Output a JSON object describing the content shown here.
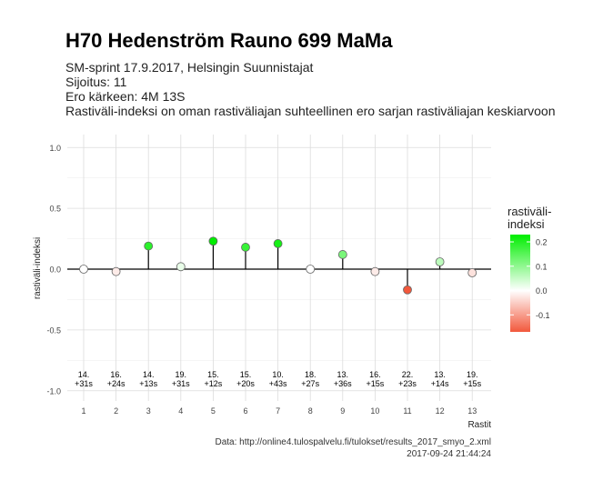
{
  "header": {
    "title": "H70 Hedenström Rauno 699 MaMa",
    "subtitle_lines": [
      "SM-sprint 17.9.2017, Helsingin Suunnistajat",
      "Sijoitus: 11",
      "Ero kärkeen: 4M 13S",
      "Rastiväli-indeksi on oman rastiväliajan suhteellinen ero sarjan rastiväliajan keskiarvoon"
    ]
  },
  "caption": {
    "source": "Data: http://online4.tulospalvelu.fi/tulokset/results_2017_smyo_2.xml",
    "timestamp": "2017-09-24 21:44:24"
  },
  "chart_data": {
    "type": "scatter",
    "style": "lollipop",
    "xlabel": "Rastit",
    "ylabel": "rastiväli-indeksi",
    "ylim": [
      -1.0,
      1.0
    ],
    "yticks": [
      "1.0",
      "0.5",
      "0.0",
      "-0.5",
      "-1.0"
    ],
    "ytick_values": [
      1.0,
      0.5,
      0.0,
      -0.5,
      -1.0
    ],
    "x": [
      1,
      2,
      3,
      4,
      5,
      6,
      7,
      8,
      9,
      10,
      11,
      12,
      13
    ],
    "xtick_labels": [
      "1",
      "2",
      "3",
      "4",
      "5",
      "6",
      "7",
      "8",
      "9",
      "10",
      "11",
      "12",
      "13"
    ],
    "values": [
      0.0,
      -0.02,
      0.19,
      0.02,
      0.23,
      0.18,
      0.21,
      0.0,
      0.12,
      -0.02,
      -0.17,
      0.06,
      -0.03
    ],
    "annotations_rank": [
      "14.",
      "16.",
      "14.",
      "19.",
      "15.",
      "15.",
      "10.",
      "18.",
      "13.",
      "16.",
      "22.",
      "13.",
      "19."
    ],
    "annotations_diff": [
      "+31s",
      "+24s",
      "+13s",
      "+31s",
      "+12s",
      "+20s",
      "+43s",
      "+27s",
      "+36s",
      "+15s",
      "+23s",
      "+14s",
      "+15s"
    ],
    "grid": true,
    "legend": {
      "title_lines": [
        "rastiväli-",
        "indeksi"
      ],
      "placement": "right",
      "range": [
        -0.17,
        0.23
      ],
      "tick_labels": [
        "0.2",
        "0.1",
        "0.0",
        "-0.1"
      ],
      "tick_values": [
        0.2,
        0.1,
        0.0,
        -0.1
      ],
      "colors": {
        "high": "#00ee00",
        "mid": "#ffffff",
        "low": "#f2583c"
      }
    }
  }
}
